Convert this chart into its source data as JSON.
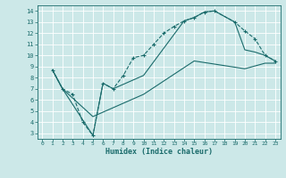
{
  "title": "",
  "xlabel": "Humidex (Indice chaleur)",
  "bg_color": "#cce8e8",
  "line_color": "#1a6b6b",
  "xlim": [
    -0.5,
    23.5
  ],
  "ylim": [
    2.5,
    14.5
  ],
  "xticks": [
    0,
    1,
    2,
    3,
    4,
    5,
    6,
    7,
    8,
    9,
    10,
    11,
    12,
    13,
    14,
    15,
    16,
    17,
    18,
    19,
    20,
    21,
    22,
    23
  ],
  "yticks": [
    3,
    4,
    5,
    6,
    7,
    8,
    9,
    10,
    11,
    12,
    13,
    14
  ],
  "lines": [
    {
      "x": [
        1,
        2,
        3,
        4,
        5,
        6,
        7,
        8,
        9,
        10,
        11,
        12,
        13,
        14,
        15,
        16,
        17,
        19,
        20,
        21,
        22,
        23
      ],
      "y": [
        8.7,
        7.0,
        6.5,
        4.0,
        2.8,
        7.5,
        7.0,
        8.2,
        9.8,
        10.0,
        11.0,
        12.0,
        12.6,
        13.1,
        13.4,
        13.9,
        14.0,
        13.0,
        12.2,
        11.5,
        10.0,
        9.5
      ],
      "marker": "+",
      "linestyle": "--",
      "linewidth": 0.8,
      "markersize": 3.5
    },
    {
      "x": [
        1,
        2,
        5,
        6,
        7,
        10,
        14,
        15,
        16,
        17,
        19,
        20,
        21,
        22,
        23
      ],
      "y": [
        8.7,
        7.0,
        2.8,
        7.5,
        7.0,
        8.2,
        13.1,
        13.4,
        13.9,
        14.0,
        13.0,
        10.5,
        10.3,
        10.0,
        9.5
      ],
      "marker": null,
      "linestyle": "-",
      "linewidth": 0.8,
      "markersize": null
    },
    {
      "x": [
        1,
        2,
        5,
        10,
        15,
        20,
        22,
        23
      ],
      "y": [
        8.7,
        7.0,
        4.5,
        6.5,
        9.5,
        8.8,
        9.3,
        9.3
      ],
      "marker": null,
      "linestyle": "-",
      "linewidth": 0.8,
      "markersize": null
    }
  ]
}
